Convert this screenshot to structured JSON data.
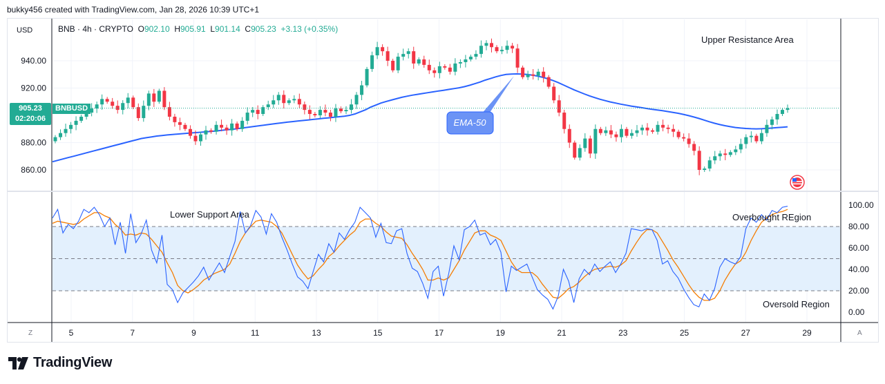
{
  "header": {
    "attribution": "bukky456 created with TradingView.com, Jan 28, 2026 10:39 UTC+1"
  },
  "ticker": {
    "symbol": "BNB · 4h · CRYPTO",
    "open_label": "O",
    "open": "902.10",
    "high_label": "H",
    "high": "905.91",
    "low_label": "L",
    "low": "901.14",
    "close_label": "C",
    "close": "905.23",
    "change": "+3.13 (+0.35%)"
  },
  "currency": "USD",
  "price_tag": {
    "price": "905.23",
    "countdown": "02:20:06",
    "symbol": "BNBUSD"
  },
  "colors": {
    "up": "#22ab94",
    "down": "#f23645",
    "ema": "#2962ff",
    "rsi": "#2962ff",
    "rsi_ma": "#f57c00",
    "band": "#e3f0fd"
  },
  "annotations": {
    "upper_resistance": "Upper Resistance Area",
    "lower_support": "Lower Support Area",
    "overbought": "Overbought REgion",
    "oversold": "Oversold Region",
    "ema_label": "EMA-50"
  },
  "buttons": {
    "z": "Z",
    "a": "A"
  },
  "footer": {
    "brand": "TradingView"
  },
  "chart_data": [
    {
      "type": "candlestick",
      "name": "BNB · 4h · CRYPTO",
      "ylim": [
        845,
        975
      ],
      "price_ticks": [
        "940.00",
        "920.00",
        "880.00",
        "860.00"
      ],
      "price_tick_values": [
        940,
        920,
        880,
        860
      ],
      "x_ticks": [
        "5",
        "7",
        "9",
        "11",
        "13",
        "15",
        "17",
        "19",
        "21",
        "23",
        "25",
        "27",
        "29"
      ],
      "x_tick_days": [
        5,
        7,
        9,
        11,
        13,
        15,
        17,
        19,
        21,
        23,
        25,
        27,
        29
      ],
      "x_range_days": [
        4.4,
        30.0
      ],
      "candles_close": [
        884,
        887,
        890,
        893,
        896,
        899,
        902,
        905,
        908,
        912,
        910,
        907,
        904,
        909,
        913,
        906,
        898,
        907,
        916,
        910,
        918,
        906,
        899,
        895,
        893,
        890,
        885,
        881,
        886,
        889,
        888,
        893,
        891,
        889,
        894,
        890,
        896,
        902,
        904,
        901,
        906,
        908,
        911,
        915,
        909,
        911,
        912,
        908,
        904,
        901,
        900,
        904,
        902,
        899,
        905,
        903,
        904,
        908,
        915,
        922,
        934,
        944,
        950,
        947,
        940,
        933,
        943,
        945,
        947,
        938,
        941,
        937,
        933,
        931,
        936,
        935,
        932,
        938,
        939,
        941,
        943,
        945,
        951,
        953,
        950,
        947,
        948,
        951,
        949,
        935,
        928,
        930,
        929,
        932,
        928,
        921,
        911,
        902,
        890,
        880,
        869,
        876,
        883,
        872,
        890,
        887,
        889,
        886,
        884,
        890,
        885,
        887,
        889,
        891,
        889,
        888,
        893,
        891,
        890,
        888,
        884,
        883,
        879,
        874,
        860,
        861,
        867,
        870,
        872,
        871,
        873,
        875,
        879,
        884,
        885,
        881,
        887,
        893,
        897,
        901,
        904,
        905.23
      ],
      "ema50": [
        866,
        867,
        868,
        869,
        870,
        871,
        872,
        873,
        874,
        875,
        876,
        877,
        878,
        879,
        880,
        881,
        882,
        883,
        883.6,
        884.2,
        884.8,
        885.2,
        885.6,
        886,
        886.3,
        886.6,
        886.9,
        887.2,
        887.5,
        887.8,
        888.1,
        888.4,
        888.8,
        889.2,
        889.6,
        890,
        890.5,
        891,
        891.5,
        892,
        892.5,
        893,
        893.5,
        894,
        894.5,
        895,
        895.4,
        895.8,
        896.2,
        896.6,
        897,
        897.4,
        897.8,
        898.2,
        898.6,
        899,
        899.4,
        900,
        901,
        902.5,
        904,
        906,
        907.5,
        909,
        910.2,
        911.2,
        912.2,
        913.2,
        914,
        914.8,
        915.4,
        916,
        916.6,
        917.2,
        917.8,
        918.4,
        919,
        919.6,
        920.2,
        921,
        922,
        923.2,
        924.4,
        925.8,
        927,
        928.2,
        929.2,
        930,
        930.3,
        930.4,
        930.3,
        930,
        929.5,
        928.8,
        927.9,
        926.8,
        925.5,
        924,
        922.3,
        920.5,
        918.8,
        917.2,
        915.7,
        914.3,
        913,
        911.8,
        910.8,
        909.8,
        909,
        908.2,
        907.5,
        906.8,
        906.2,
        905.6,
        905,
        904.4,
        903.9,
        903.4,
        902.8,
        902.2,
        901.5,
        900.7,
        899.8,
        898.8,
        897.7,
        896.5,
        895.3,
        894.2,
        893.2,
        892.4,
        891.7,
        891.1,
        890.7,
        890.4,
        890.2,
        890.1,
        890.2,
        890.4,
        890.7,
        891,
        891.3,
        891.6
      ]
    },
    {
      "type": "line",
      "name": "RSI",
      "ylim": [
        -8,
        108
      ],
      "y_ticks": [
        "100.00",
        "80.00",
        "60.00",
        "40.00",
        "20.00",
        "0.00"
      ],
      "y_tick_values": [
        100,
        80,
        60,
        40,
        20,
        0
      ],
      "band": [
        20,
        80
      ],
      "midline": 50,
      "rsi": [
        88,
        96,
        74,
        82,
        78,
        85,
        96,
        93,
        98,
        91,
        80,
        88,
        63,
        84,
        55,
        92,
        65,
        73,
        86,
        58,
        46,
        72,
        26,
        21,
        9,
        18,
        23,
        28,
        34,
        42,
        30,
        38,
        46,
        37,
        52,
        66,
        94,
        74,
        81,
        95,
        89,
        73,
        92,
        84,
        70,
        58,
        45,
        33,
        29,
        22,
        38,
        54,
        47,
        64,
        56,
        74,
        68,
        77,
        84,
        98,
        93,
        88,
        70,
        83,
        65,
        64,
        76,
        78,
        55,
        41,
        38,
        27,
        13,
        38,
        43,
        15,
        36,
        62,
        49,
        77,
        80,
        86,
        72,
        74,
        63,
        68,
        56,
        19,
        43,
        39,
        42,
        45,
        33,
        21,
        16,
        12,
        3,
        15,
        40,
        29,
        9,
        31,
        40,
        35,
        45,
        38,
        43,
        47,
        37,
        45,
        55,
        78,
        77,
        76,
        78,
        77,
        67,
        45,
        48,
        38,
        32,
        22,
        14,
        7,
        5,
        17,
        11,
        22,
        42,
        50,
        47,
        45,
        52,
        78,
        88,
        84,
        91,
        86,
        95,
        93,
        98,
        99
      ],
      "rsi_ma": [
        83,
        85,
        84,
        83,
        82,
        83,
        87,
        90,
        93,
        93,
        90,
        88,
        82,
        78,
        72,
        73,
        72,
        74,
        73,
        68,
        62,
        56,
        46,
        37,
        25,
        20,
        18,
        21,
        25,
        30,
        33,
        36,
        38,
        40,
        45,
        55,
        66,
        74,
        80,
        85,
        86,
        85,
        84,
        80,
        74,
        64,
        54,
        44,
        37,
        31,
        34,
        40,
        45,
        52,
        56,
        62,
        67,
        72,
        76,
        84,
        87,
        87,
        83,
        80,
        75,
        71,
        70,
        69,
        63,
        55,
        48,
        40,
        30,
        30,
        32,
        30,
        32,
        40,
        48,
        58,
        66,
        74,
        76,
        76,
        72,
        70,
        67,
        57,
        47,
        40,
        37,
        37,
        37,
        33,
        26,
        20,
        14,
        13,
        17,
        22,
        24,
        28,
        33,
        37,
        40,
        41,
        42,
        43,
        42,
        44,
        48,
        57,
        65,
        72,
        77,
        77,
        74,
        66,
        58,
        49,
        42,
        34,
        26,
        19,
        14,
        11,
        11,
        13,
        20,
        30,
        38,
        45,
        48,
        56,
        67,
        76,
        84,
        88,
        91,
        93,
        94,
        96
      ]
    }
  ]
}
